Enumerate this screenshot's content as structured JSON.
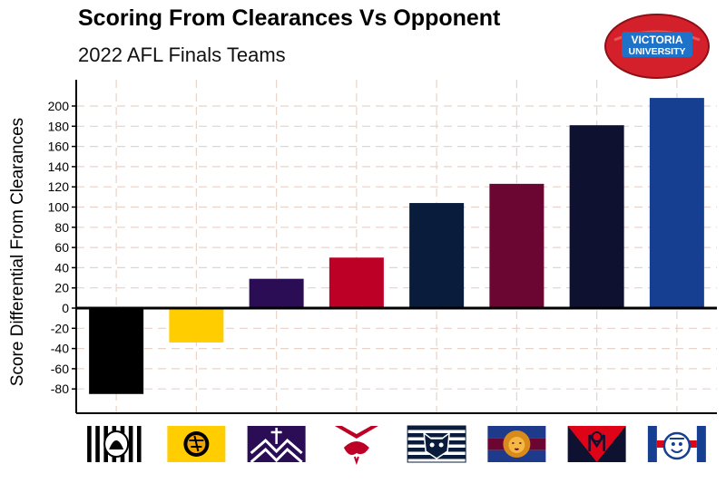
{
  "header": {
    "title": "Scoring From Clearances Vs Opponent",
    "subtitle": "2022 AFL Finals Teams"
  },
  "logo": {
    "line1": "VICTORIA",
    "line2": "UNIVERSITY"
  },
  "chart_data": {
    "type": "bar",
    "title": "Scoring From Clearances Vs Opponent",
    "subtitle": "2022 AFL Finals Teams",
    "xlabel": "",
    "ylabel": "Score Differential From Clearances",
    "ylim": [
      -100,
      225
    ],
    "yticks": [
      -80,
      -60,
      -40,
      -20,
      0,
      20,
      40,
      60,
      80,
      100,
      120,
      140,
      160,
      180,
      200
    ],
    "grid": true,
    "categories": [
      "Collingwood",
      "Richmond",
      "Fremantle",
      "Sydney",
      "Geelong",
      "Brisbane",
      "Melbourne",
      "Western Bulldogs"
    ],
    "values": [
      -85,
      -34,
      29,
      50,
      104,
      123,
      181,
      208
    ],
    "colors": [
      "#000000",
      "#FFCD00",
      "#2A0D54",
      "#BD0026",
      "#0A1C3C",
      "#6B0531",
      "#0F1131",
      "#163F92"
    ],
    "x_axis_labels": "team logos"
  }
}
